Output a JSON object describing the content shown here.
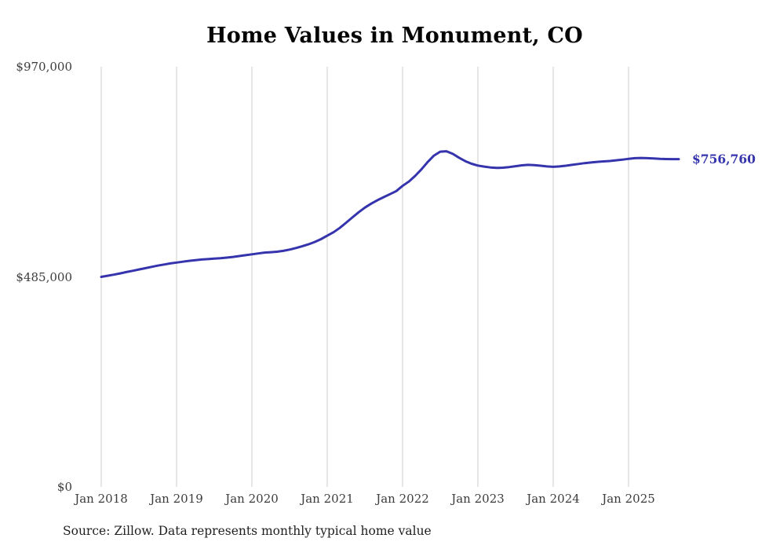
{
  "source_note": "Source: Zillow. Data represents monthly typical home value",
  "colors": {
    "line": "#3534ad",
    "grid": "#cccccc",
    "axis_text": "#3c3c3c",
    "title_text": "#050505",
    "background": "#ffffff"
  },
  "chart_data": {
    "type": "line",
    "title": "Home Values in Monument, CO",
    "x_start": "Jan 2018",
    "x_interval": "monthly",
    "x_tick_labels": [
      "Jan 2018",
      "Jan 2019",
      "Jan 2020",
      "Jan 2021",
      "Jan 2022",
      "Jan 2023",
      "Jan 2024",
      "Jan 2025"
    ],
    "y_ticks": [
      {
        "label": "$970,000",
        "value": 970000
      },
      {
        "label": "$485,000",
        "value": 485000
      },
      {
        "label": "$0",
        "value": 0
      }
    ],
    "ylim": [
      0,
      970000
    ],
    "grid": "vertical-only",
    "legend": "none",
    "end_label": "$756,760",
    "final_value": 756760,
    "series": [
      {
        "name": "Typical home value",
        "color": "#3534ad",
        "values": [
          485000,
          487500,
          490000,
          493000,
          496000,
          499000,
          502000,
          505000,
          508000,
          511000,
          513500,
          516000,
          518000,
          520000,
          522000,
          523500,
          525000,
          526000,
          527000,
          528000,
          529500,
          531000,
          533000,
          535000,
          537000,
          539000,
          541000,
          542000,
          543000,
          545000,
          548000,
          551500,
          555500,
          560000,
          565500,
          572000,
          580000,
          588000,
          598000,
          610000,
          622000,
          634000,
          645000,
          654000,
          662000,
          669000,
          676000,
          683000,
          695000,
          705000,
          718000,
          733000,
          750000,
          765000,
          774000,
          775000,
          769000,
          760000,
          752000,
          746000,
          742000,
          739500,
          737500,
          736500,
          737000,
          738500,
          740500,
          742500,
          743500,
          743000,
          741500,
          740000,
          739000,
          740000,
          741500,
          743500,
          745500,
          747500,
          749000,
          750500,
          751500,
          752500,
          754000,
          755500,
          757500,
          759000,
          759500,
          759000,
          758200,
          757400,
          756900,
          756700,
          756760
        ]
      }
    ]
  }
}
